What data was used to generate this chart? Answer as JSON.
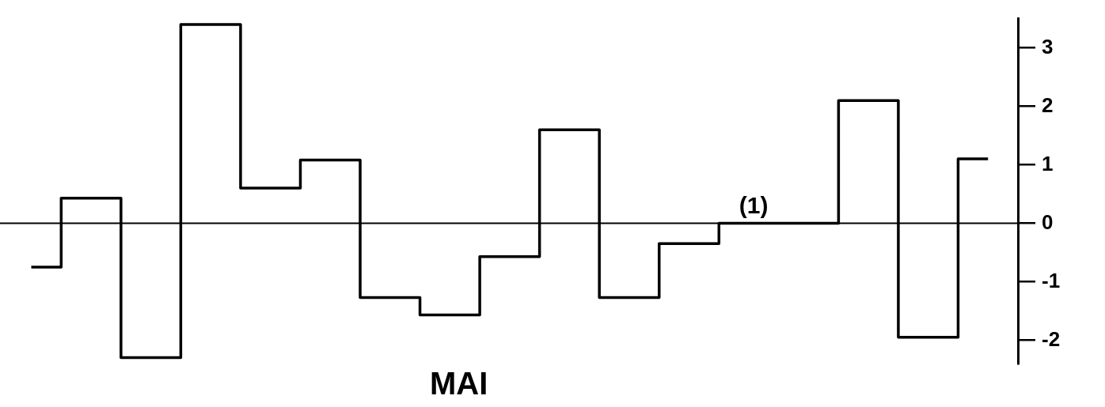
{
  "chart_data": {
    "type": "step",
    "categories": [
      null,
      null,
      null,
      null,
      null,
      null,
      null,
      null,
      null,
      null,
      null,
      null,
      null,
      null,
      null,
      null,
      null
    ],
    "series": [
      {
        "color": "#000000",
        "values": [
          -0.75,
          0.43,
          -2.3,
          3.4,
          0.6,
          1.08,
          -1.27,
          -1.57,
          -0.57,
          1.6,
          -1.27,
          -0.35,
          0,
          0,
          2.1,
          -1.95,
          1.1
        ]
      }
    ],
    "ylim": [
      -2.4,
      3.5
    ],
    "yticks": [
      -2,
      -1,
      0,
      1,
      2,
      3
    ],
    "grid": false,
    "legend": false,
    "tick_labels": "y",
    "marker": "none",
    "line_style": "solid",
    "ref_lines": [
      {
        "axis": "y",
        "value": 0,
        "color": "#000000"
      }
    ],
    "annotations": [
      "(1)",
      "MAI"
    ]
  }
}
